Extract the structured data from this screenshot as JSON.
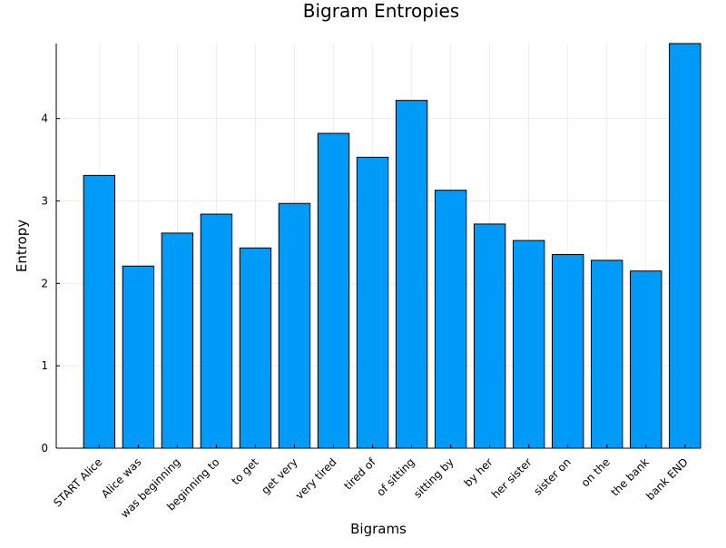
{
  "chart_data": {
    "type": "bar",
    "title": "Bigram Entropies",
    "xlabel": "Bigrams",
    "ylabel": "Entropy",
    "categories": [
      "START Alice",
      "Alice was",
      "was beginning",
      "beginning to",
      "to get",
      "get very",
      "very tired",
      "tired of",
      "of sitting",
      "sitting by",
      "by her",
      "her sister",
      "sister on",
      "on the",
      "the bank",
      "bank END"
    ],
    "values": [
      3.31,
      2.21,
      2.61,
      2.84,
      2.43,
      2.97,
      3.82,
      3.53,
      4.22,
      3.13,
      2.72,
      2.52,
      2.35,
      2.28,
      2.15,
      4.91
    ],
    "ylim": [
      0,
      4.91
    ],
    "yticks": [
      0,
      1,
      2,
      3,
      4
    ],
    "ytick_labels": [
      "0",
      "1",
      "2",
      "3",
      "4"
    ],
    "bar_color": "#009AF9",
    "bar_edge_color": "#000000",
    "grid": true,
    "legend": "none"
  }
}
